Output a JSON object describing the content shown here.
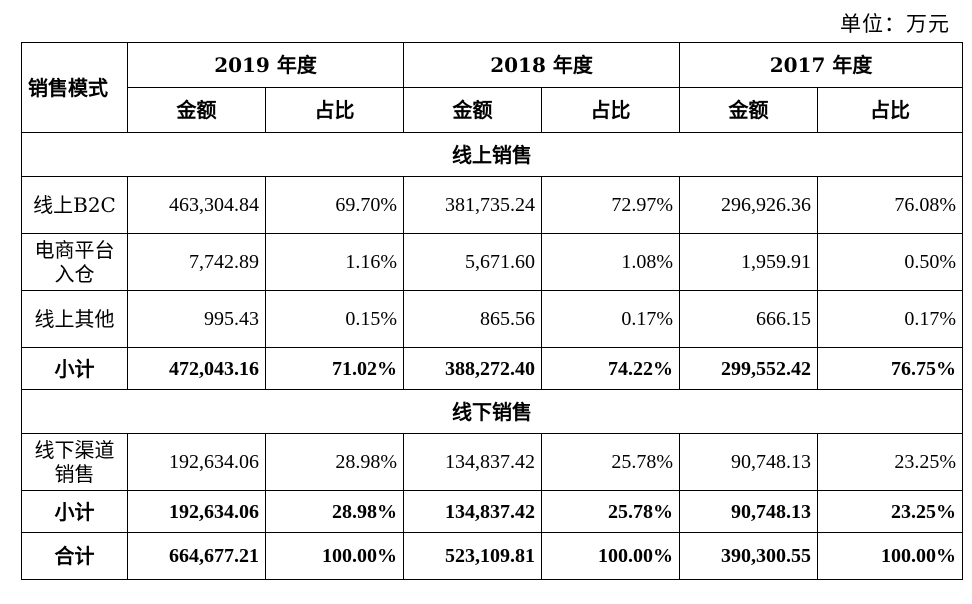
{
  "unit": "单位：万元",
  "headers": {
    "mode": "销售模式",
    "years": [
      "2019 年度",
      "2018 年度",
      "2017 年度"
    ],
    "amount": "金额",
    "ratio": "占比"
  },
  "sections": [
    {
      "title": "线上销售",
      "rows": [
        {
          "label": "线上B2C",
          "values": [
            "463,304.84",
            "69.70%",
            "381,735.24",
            "72.97%",
            "296,926.36",
            "76.08%"
          ]
        },
        {
          "label": "电商平台入仓",
          "values": [
            "7,742.89",
            "1.16%",
            "5,671.60",
            "1.08%",
            "1,959.91",
            "0.50%"
          ]
        },
        {
          "label": "线上其他",
          "values": [
            "995.43",
            "0.15%",
            "865.56",
            "0.17%",
            "666.15",
            "0.17%"
          ]
        }
      ],
      "subtotal": {
        "label": "小计",
        "values": [
          "472,043.16",
          "71.02%",
          "388,272.40",
          "74.22%",
          "299,552.42",
          "76.75%"
        ]
      }
    },
    {
      "title": "线下销售",
      "rows": [
        {
          "label": "线下渠道销售",
          "values": [
            "192,634.06",
            "28.98%",
            "134,837.42",
            "25.78%",
            "90,748.13",
            "23.25%"
          ]
        }
      ],
      "subtotal": {
        "label": "小计",
        "values": [
          "192,634.06",
          "28.98%",
          "134,837.42",
          "25.78%",
          "90,748.13",
          "23.25%"
        ]
      }
    }
  ],
  "total": {
    "label": "合计",
    "values": [
      "664,677.21",
      "100.00%",
      "523,109.81",
      "100.00%",
      "390,300.55",
      "100.00%"
    ]
  }
}
